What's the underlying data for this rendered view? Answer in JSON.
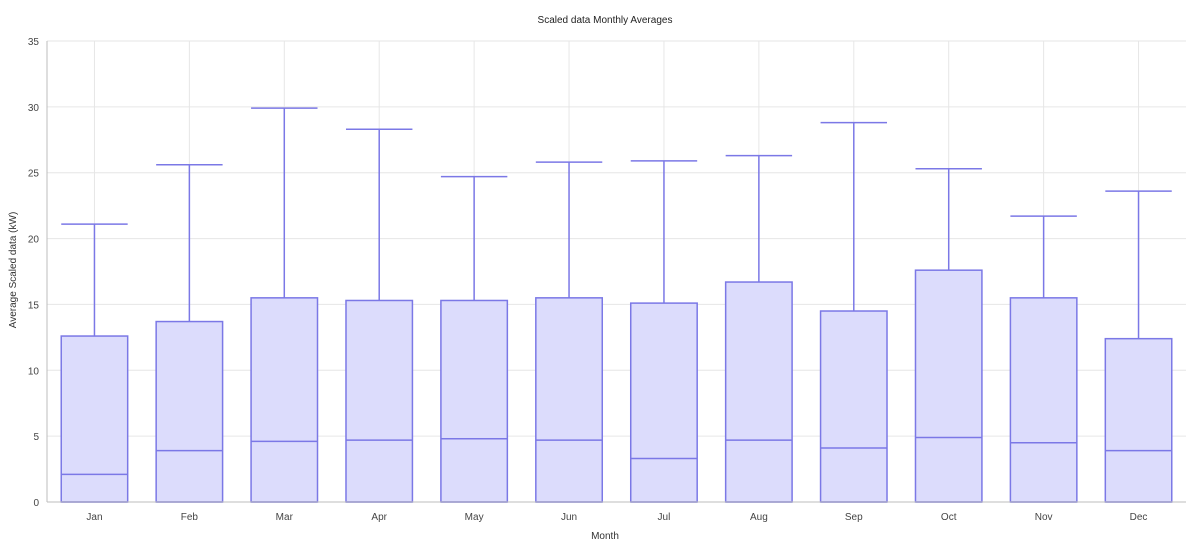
{
  "chart_data": {
    "type": "box",
    "title": "Scaled data Monthly Averages",
    "xlabel": "Month",
    "ylabel": "Average Scaled data (kW)",
    "ylim": [
      0,
      35
    ],
    "y_ticks": [
      0,
      5,
      10,
      15,
      20,
      25,
      30,
      35
    ],
    "grid": true,
    "categories": [
      "Jan",
      "Feb",
      "Mar",
      "Apr",
      "May",
      "Jun",
      "Jul",
      "Aug",
      "Sep",
      "Oct",
      "Nov",
      "Dec"
    ],
    "series": [
      {
        "min": [
          0,
          0,
          0,
          0,
          0,
          0,
          0,
          0,
          0,
          0,
          0,
          0
        ],
        "q1": [
          0,
          0,
          0,
          0,
          0,
          0,
          0,
          0,
          0,
          0,
          0,
          0
        ],
        "median": [
          2.1,
          3.9,
          4.6,
          4.7,
          4.8,
          4.7,
          3.3,
          4.7,
          4.1,
          4.9,
          4.5,
          3.9
        ],
        "q3": [
          12.6,
          13.7,
          15.5,
          15.3,
          15.3,
          15.5,
          15.1,
          16.7,
          14.5,
          17.6,
          15.5,
          12.4
        ],
        "max": [
          21.1,
          25.6,
          29.9,
          28.3,
          24.7,
          25.8,
          25.9,
          26.3,
          28.8,
          25.3,
          21.7,
          23.6
        ]
      }
    ],
    "colors": {
      "box_fill": "#dcdcfc",
      "box_stroke": "#7b78e6",
      "grid": "#e6e6e6",
      "axis": "#bdbdbd",
      "text": "#333333"
    }
  }
}
